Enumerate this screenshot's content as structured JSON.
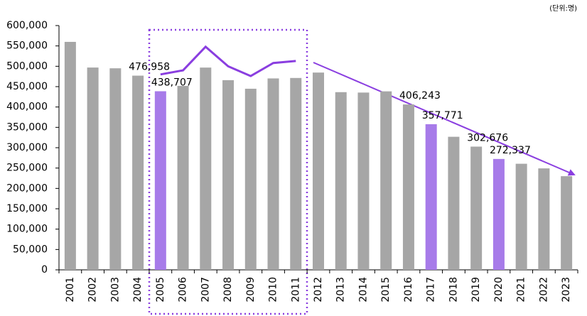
{
  "chart_data": {
    "type": "bar",
    "unit_note": "(단위:명)",
    "categories": [
      "2001",
      "2002",
      "2003",
      "2004",
      "2005",
      "2006",
      "2007",
      "2008",
      "2009",
      "2010",
      "2011",
      "2012",
      "2013",
      "2014",
      "2015",
      "2016",
      "2017",
      "2018",
      "2019",
      "2020",
      "2021",
      "2022",
      "2023"
    ],
    "values": [
      559934,
      496911,
      495036,
      476958,
      438707,
      451759,
      496822,
      465892,
      444849,
      470171,
      471265,
      484550,
      436455,
      435435,
      438420,
      406243,
      357771,
      326822,
      302676,
      272337,
      260562,
      249186,
      230028
    ],
    "value_labels": [
      null,
      null,
      null,
      "476,958",
      "438,707",
      null,
      null,
      null,
      null,
      null,
      null,
      null,
      null,
      null,
      null,
      "406,243",
      "357,771",
      null,
      "302,676",
      "272,337",
      null,
      null,
      null
    ],
    "colors": [
      "#a6a6a6",
      "#a6a6a6",
      "#a6a6a6",
      "#a6a6a6",
      "#a77be9",
      "#a6a6a6",
      "#a6a6a6",
      "#a6a6a6",
      "#a6a6a6",
      "#a6a6a6",
      "#a6a6a6",
      "#a6a6a6",
      "#a6a6a6",
      "#a6a6a6",
      "#a6a6a6",
      "#a6a6a6",
      "#a77be9",
      "#a6a6a6",
      "#a6a6a6",
      "#a77be9",
      "#a6a6a6",
      "#a6a6a6",
      "#a6a6a6"
    ],
    "trend_line": {
      "color": "#8a3ee0",
      "values": [
        null,
        null,
        null,
        null,
        480000,
        490000,
        548000,
        500000,
        476000,
        508000,
        513000,
        null,
        null,
        null,
        null,
        null,
        null,
        null,
        null,
        null,
        null,
        null,
        null
      ]
    },
    "ylim": [
      0,
      600000
    ],
    "yticks": [
      {
        "value": 0,
        "label": "0"
      },
      {
        "value": 50000,
        "label": "50,000"
      },
      {
        "value": 100000,
        "label": "100,000"
      },
      {
        "value": 150000,
        "label": "150,000"
      },
      {
        "value": 200000,
        "label": "200,000"
      },
      {
        "value": 250000,
        "label": "250,000"
      },
      {
        "value": 300000,
        "label": "300,000"
      },
      {
        "value": 350000,
        "label": "350,000"
      },
      {
        "value": 400000,
        "label": "400,000"
      },
      {
        "value": 450000,
        "label": "450,000"
      },
      {
        "value": 500000,
        "label": "500,000"
      },
      {
        "value": 550000,
        "label": "550,000"
      },
      {
        "value": 600000,
        "label": "600,000"
      }
    ]
  }
}
